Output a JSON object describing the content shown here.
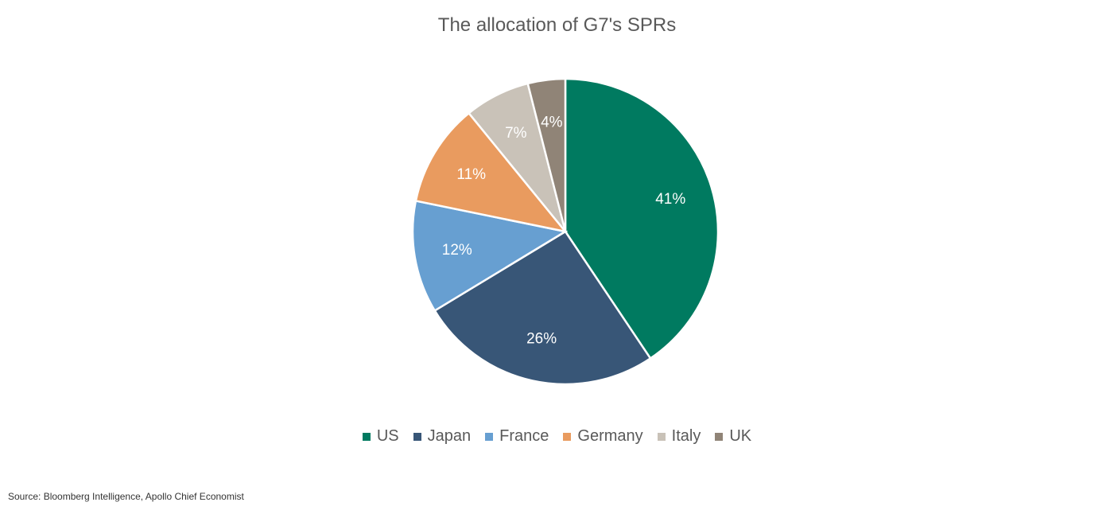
{
  "chart_data": {
    "type": "pie",
    "title": "The allocation of G7's SPRs",
    "categories": [
      "US",
      "Japan",
      "France",
      "Germany",
      "Italy",
      "UK"
    ],
    "values": [
      41,
      26,
      12,
      11,
      7,
      4
    ],
    "data_labels": [
      "41%",
      "26%",
      "12%",
      "11%",
      "7%",
      "4%"
    ],
    "colors": [
      "#007a60",
      "#385677",
      "#679fd1",
      "#e99b5f",
      "#c9c2b8",
      "#908477"
    ],
    "legend_position": "bottom",
    "start_angle": "12 o'clock",
    "direction": "clockwise"
  },
  "footer": {
    "source": "Source: Bloomberg Intelligence, Apollo Chief Economist"
  }
}
